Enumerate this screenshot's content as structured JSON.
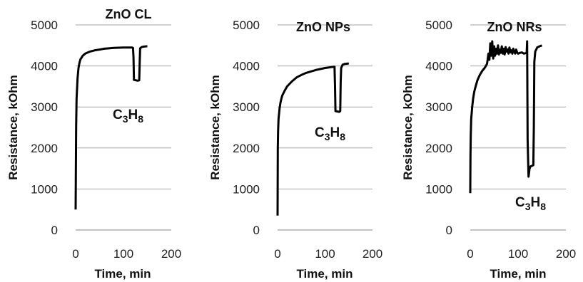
{
  "chart_data": [
    {
      "type": "line",
      "title": "ZnO CL",
      "xlabel": "Time, min",
      "ylabel": "Resistance, kOhm",
      "xlim": [
        0,
        200
      ],
      "ylim": [
        0,
        5000
      ],
      "xticks": [
        "0",
        "100",
        "200"
      ],
      "yticks": [
        "0",
        "1000",
        "2000",
        "3000",
        "4000",
        "5000"
      ],
      "annotation": {
        "base": "C",
        "sub1": "3",
        "mid": "H",
        "sub2": "8"
      },
      "series": [
        {
          "x": [
            0,
            1,
            2,
            4,
            6,
            8,
            10,
            15,
            20,
            30,
            40,
            50,
            60,
            80,
            100,
            118,
            120,
            121,
            122,
            130,
            133,
            134,
            135,
            138,
            142,
            148,
            150
          ],
          "y": [
            500,
            2500,
            3200,
            3700,
            3950,
            4080,
            4160,
            4250,
            4300,
            4350,
            4380,
            4400,
            4420,
            4440,
            4450,
            4450,
            4440,
            4200,
            3660,
            3640,
            3650,
            4100,
            4430,
            4460,
            4470,
            4480,
            4480
          ]
        }
      ]
    },
    {
      "type": "line",
      "title": "ZnO NPs",
      "xlabel": "Time, min",
      "ylabel": "Resistance, kOhm",
      "xlim": [
        0,
        200
      ],
      "ylim": [
        0,
        5000
      ],
      "xticks": [
        "0",
        "100",
        "200"
      ],
      "yticks": [
        "0",
        "1000",
        "2000",
        "3000",
        "4000",
        "5000"
      ],
      "annotation": {
        "base": "C",
        "sub1": "3",
        "mid": "H",
        "sub2": "8"
      },
      "series": [
        {
          "x": [
            0,
            0.5,
            1,
            2,
            4,
            6,
            8,
            10,
            15,
            20,
            30,
            40,
            50,
            60,
            80,
            100,
            118,
            120,
            121,
            122,
            130,
            132,
            133,
            134,
            137,
            142,
            150
          ],
          "y": [
            350,
            2000,
            2400,
            2700,
            2950,
            3100,
            3200,
            3280,
            3400,
            3500,
            3620,
            3720,
            3780,
            3830,
            3900,
            3950,
            3980,
            3980,
            3500,
            2900,
            2880,
            2900,
            3600,
            3950,
            4030,
            4050,
            4060
          ]
        }
      ]
    },
    {
      "type": "line",
      "title": "ZnO NRs",
      "xlabel": "Time, min",
      "ylabel": "Resistance, kOhm",
      "xlim": [
        0,
        200
      ],
      "ylim": [
        0,
        5000
      ],
      "xticks": [
        "0",
        "100",
        "200"
      ],
      "yticks": [
        "0",
        "1000",
        "2000",
        "3000",
        "4000",
        "5000"
      ],
      "annotation": {
        "base": "C",
        "sub1": "3",
        "mid": "H",
        "sub2": "8"
      },
      "series": [
        {
          "x": [
            0,
            0.5,
            1,
            2,
            4,
            6,
            8,
            10,
            15,
            20,
            25,
            30,
            35,
            38,
            40,
            42,
            44,
            46,
            48,
            50,
            52,
            54,
            56,
            58,
            60,
            62,
            64,
            66,
            68,
            70,
            72,
            74,
            76,
            78,
            80,
            82,
            84,
            86,
            88,
            90,
            92,
            94,
            96,
            98,
            100,
            104,
            108,
            112,
            116,
            118,
            119,
            120,
            121,
            122,
            124,
            126,
            132,
            133,
            134,
            136,
            140,
            145,
            150
          ],
          "y": [
            900,
            1800,
            2300,
            2700,
            3000,
            3200,
            3350,
            3450,
            3650,
            3780,
            3880,
            3950,
            4050,
            4300,
            4150,
            4550,
            4250,
            4600,
            4180,
            4480,
            4250,
            4420,
            4300,
            4500,
            4280,
            4400,
            4320,
            4480,
            4300,
            4420,
            4280,
            4460,
            4350,
            4400,
            4300,
            4450,
            4330,
            4380,
            4300,
            4420,
            4350,
            4300,
            4400,
            4330,
            4300,
            4320,
            4330,
            4300,
            4310,
            4320,
            4600,
            2200,
            1700,
            1300,
            1500,
            1550,
            1580,
            2500,
            4100,
            4350,
            4450,
            4480,
            4500
          ]
        }
      ]
    }
  ]
}
